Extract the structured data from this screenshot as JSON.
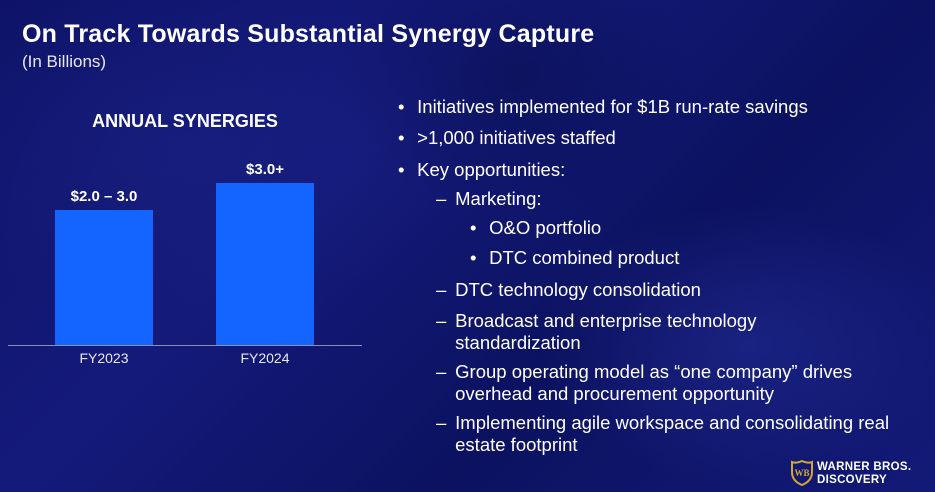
{
  "title": "On Track Towards Substantial Synergy Capture",
  "subtitle": "(In Billions)",
  "chart_heading": "ANNUAL SYNERGIES",
  "chart_data": {
    "type": "bar",
    "title": "ANNUAL SYNERGIES",
    "categories": [
      "FY2023",
      "FY2024"
    ],
    "values": [
      2.5,
      3.0
    ],
    "data_labels": [
      "$2.0 – 3.0",
      "$3.0+"
    ],
    "ylim": [
      0,
      3.0
    ],
    "bar_color": "#1464ff",
    "axis_color": "#8a8fb8",
    "grid": false
  },
  "bullets": [
    {
      "level": 1,
      "marker": "•",
      "text": "Initiatives implemented for $1B run-rate savings"
    },
    {
      "level": 1,
      "marker": "•",
      "text": ">1,000 initiatives staffed"
    },
    {
      "level": 1,
      "marker": "•",
      "text": "Key opportunities:"
    },
    {
      "level": 2,
      "marker": "–",
      "text": "Marketing:"
    },
    {
      "level": 3,
      "marker": "•",
      "text": "O&O portfolio"
    },
    {
      "level": 3,
      "marker": "•",
      "text": "DTC combined product"
    },
    {
      "level": 2,
      "marker": "–",
      "text": "DTC technology consolidation"
    },
    {
      "level": 2,
      "marker": "–",
      "text": "Broadcast and enterprise technology standardization"
    },
    {
      "level": 2,
      "marker": "–",
      "text": "Group operating model as “one company” drives overhead and procurement opportunity"
    },
    {
      "level": 2,
      "marker": "–",
      "text": "Implementing agile workspace and consolidating real estate footprint"
    }
  ],
  "logo": {
    "line1": "WARNER BROS.",
    "line2": "DISCOVERY",
    "shield_color": "#d4a437"
  }
}
